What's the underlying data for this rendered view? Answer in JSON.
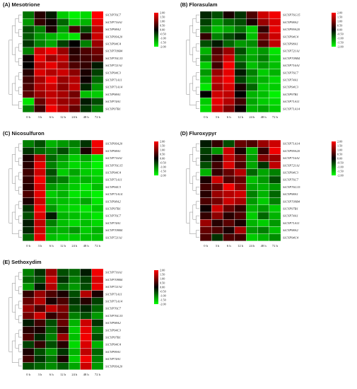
{
  "chart_data": [
    {
      "type": "heatmap",
      "title": "(A) Mesotrione",
      "x": [
        "0 h",
        "3 h",
        "6 h",
        "12 h",
        "24 h",
        "48 h",
        "72 h"
      ],
      "rows": [
        "SiCYP76C7",
        "SiCYP716A1",
        "SiCYP98A2",
        "SiCYP99A20",
        "SiCYP94C4",
        "SiCYP709B4",
        "SiCYP76G15",
        "SiCYP721A1",
        "SiCYP94C3",
        "SiCYP71A11",
        "SiCYP71A14",
        "SiCYP98A1",
        "SiCYP74A1",
        "SiCYP97B1"
      ],
      "values": [
        [
          -0.9,
          0.3,
          -0.2,
          -1.6,
          -1.9,
          -1.7,
          2.0
        ],
        [
          -1.2,
          0.4,
          0.1,
          -0.8,
          -1.6,
          -1.4,
          1.8
        ],
        [
          -0.6,
          -1.0,
          0.2,
          -1.2,
          0.5,
          -0.6,
          1.5
        ],
        [
          -0.7,
          -1.2,
          -1.4,
          -1.6,
          -1.8,
          0.3,
          1.6
        ],
        [
          -0.4,
          -1.0,
          -1.3,
          -0.5,
          0.0,
          -1.0,
          1.2
        ],
        [
          -1.0,
          1.6,
          1.9,
          1.2,
          0.3,
          0.6,
          0.9
        ],
        [
          0.1,
          1.8,
          1.2,
          1.5,
          0.4,
          0.5,
          0.7
        ],
        [
          0.0,
          1.5,
          1.8,
          1.3,
          0.6,
          0.4,
          -0.2
        ],
        [
          0.3,
          1.7,
          1.4,
          1.6,
          1.1,
          0.2,
          -0.5
        ],
        [
          0.5,
          1.3,
          1.9,
          1.2,
          1.4,
          0.1,
          -0.8
        ],
        [
          0.6,
          1.4,
          1.6,
          1.1,
          1.5,
          -0.3,
          -1.2
        ],
        [
          0.7,
          1.2,
          1.5,
          1.3,
          0.9,
          -1.5,
          -1.6
        ],
        [
          -1.8,
          0.8,
          1.6,
          1.2,
          1.1,
          -0.2,
          -0.6
        ],
        [
          -1.0,
          0.5,
          1.9,
          1.4,
          0.8,
          -0.4,
          -1.0
        ]
      ],
      "colorbar": [
        "2.00",
        "1.50",
        "1.00",
        "0.50",
        "0.00",
        "-0.50",
        "-1.00",
        "-1.50",
        "-2.00"
      ],
      "vmin": -2,
      "vmax": 2
    },
    {
      "type": "heatmap",
      "title": "(B) Florasulam",
      "x": [
        "0 h",
        "3 h",
        "6 h",
        "12 h",
        "24 h",
        "48 h",
        "72 h"
      ],
      "rows": [
        "SiCYP76G15",
        "SiCYP98A2",
        "SiCYP99A20",
        "SiCYP94C4",
        "SiCYP98A1",
        "SiCYP721A1",
        "SiCYP709B4",
        "SiCYP716A1",
        "SiCYP76C7",
        "SiCYP74A1",
        "SiCYP94C3",
        "SiCYP97B1",
        "SiCYP71A11",
        "SiCYP71A14"
      ],
      "values": [
        [
          -0.3,
          -0.6,
          0.2,
          -0.4,
          0.6,
          1.6,
          1.9
        ],
        [
          -0.5,
          -1.2,
          -0.8,
          -0.6,
          0.2,
          1.2,
          1.7
        ],
        [
          -0.8,
          -1.5,
          -1.3,
          -0.9,
          -1.6,
          0.4,
          1.8
        ],
        [
          0.4,
          -1.0,
          -0.6,
          -0.3,
          -1.5,
          0.9,
          1.6
        ],
        [
          -0.6,
          -0.2,
          -0.8,
          -1.2,
          -1.1,
          0.6,
          1.5
        ],
        [
          -1.4,
          0.6,
          1.2,
          -0.6,
          -1.4,
          -1.2,
          -1.8
        ],
        [
          -1.0,
          0.8,
          1.6,
          -0.9,
          -1.3,
          -1.0,
          -1.6
        ],
        [
          -1.6,
          0.5,
          1.9,
          -0.6,
          -1.5,
          -1.2,
          -1.5
        ],
        [
          -1.2,
          1.2,
          1.8,
          -0.2,
          -1.0,
          -1.6,
          -1.4
        ],
        [
          -1.5,
          1.5,
          1.9,
          -0.5,
          -1.2,
          -1.4,
          -1.7
        ],
        [
          -1.8,
          1.3,
          1.7,
          0.2,
          -0.8,
          -1.6,
          -1.6
        ],
        [
          0.0,
          1.6,
          1.5,
          0.0,
          -1.4,
          -1.5,
          -1.9
        ],
        [
          -1.6,
          1.8,
          1.4,
          0.5,
          -1.3,
          -1.6,
          -1.7
        ],
        [
          -1.7,
          1.6,
          1.0,
          0.1,
          -1.4,
          -1.3,
          -1.6
        ]
      ],
      "colorbar": [
        "2.00",
        "1.50",
        "1.00",
        "0.50",
        "0.00",
        "-0.50",
        "-1.00",
        "-1.50",
        "-2.00"
      ],
      "vmin": -2,
      "vmax": 2
    },
    {
      "type": "heatmap",
      "title": "(C) Nicosulfuron",
      "x": [
        "0 h",
        "3 h",
        "6 h",
        "12 h",
        "24 h",
        "48 h",
        "72 h"
      ],
      "rows": [
        "SiCYP99A20",
        "SiCYP98A1",
        "SiCYP716A1",
        "SiCYP76G15",
        "SiCYP94C4",
        "SiCYP71A11",
        "SiCYP94C3",
        "SiCYP71A14",
        "SiCYP98A2",
        "SiCYP97B1",
        "SiCYP76C7",
        "SiCYP74A1",
        "SiCYP709B4",
        "SiCYP721A1"
      ],
      "values": [
        [
          -1.0,
          -0.6,
          -1.4,
          -1.2,
          -1.0,
          -0.4,
          1.9
        ],
        [
          -0.4,
          -0.8,
          -1.0,
          -0.6,
          -1.2,
          0.2,
          1.7
        ],
        [
          0.2,
          1.4,
          -0.8,
          -1.2,
          -1.6,
          -1.3,
          -1.8
        ],
        [
          0.3,
          1.8,
          -1.0,
          -1.4,
          -1.7,
          -1.6,
          -1.9
        ],
        [
          0.5,
          1.6,
          -0.6,
          -1.6,
          -1.3,
          -1.6,
          -1.7
        ],
        [
          0.4,
          1.9,
          -0.8,
          -1.0,
          -1.5,
          -1.4,
          -1.6
        ],
        [
          0.3,
          1.7,
          -1.2,
          -1.4,
          -1.6,
          -1.8,
          -1.5
        ],
        [
          0.6,
          1.8,
          -1.6,
          -1.4,
          -1.8,
          -1.7,
          -1.9
        ],
        [
          0.2,
          1.6,
          -1.4,
          -1.5,
          -1.6,
          -1.3,
          -1.8
        ],
        [
          -0.4,
          1.9,
          -1.2,
          -1.6,
          -1.7,
          -1.8,
          -1.6
        ],
        [
          -0.6,
          1.7,
          -0.2,
          -1.4,
          -1.5,
          -1.6,
          -1.8
        ],
        [
          -0.2,
          1.5,
          -1.0,
          -1.5,
          -1.7,
          -1.5,
          -1.7
        ],
        [
          -0.3,
          1.6,
          -1.3,
          -1.4,
          -1.2,
          -1.6,
          -1.4
        ],
        [
          -0.8,
          1.8,
          -1.5,
          -1.6,
          -1.6,
          -1.5,
          -1.5
        ]
      ],
      "colorbar": [
        "2.00",
        "1.50",
        "1.00",
        "0.50",
        "0.00",
        "-0.50",
        "-1.00",
        "-1.50",
        "-2.00"
      ],
      "vmin": -2,
      "vmax": 2
    },
    {
      "type": "heatmap",
      "title": "(D) Fluroxypyr",
      "x": [
        "0 h",
        "3 h",
        "6 h",
        "12 h",
        "24 h",
        "48 h",
        "72 h"
      ],
      "rows": [
        "SiCYP71A14",
        "SiCYP99A20",
        "SiCYP716A1",
        "SiCYP721A1",
        "SiCYP94C3",
        "SiCYP76C7",
        "SiCYP76G15",
        "SiCYP98A1",
        "SiCYP709B4",
        "SiCYP97B1",
        "SiCYP74A1",
        "SiCYP71A11",
        "SiCYP98A2",
        "SiCYP94C4"
      ],
      "values": [
        [
          -0.2,
          0.4,
          -0.6,
          0.8,
          0.6,
          1.2,
          1.6
        ],
        [
          -0.5,
          -1.2,
          1.6,
          0.2,
          -1.4,
          0.4,
          1.9
        ],
        [
          -0.3,
          0.2,
          1.5,
          0.8,
          -1.2,
          1.0,
          1.2
        ],
        [
          -0.6,
          0.5,
          1.7,
          0.6,
          -1.3,
          -0.4,
          1.5
        ],
        [
          -1.4,
          0.4,
          0.8,
          1.4,
          -0.8,
          -1.3,
          -1.0
        ],
        [
          0.2,
          1.6,
          0.6,
          0.8,
          -1.5,
          -1.2,
          -0.6
        ],
        [
          0.5,
          0.8,
          1.9,
          1.1,
          -1.3,
          -1.4,
          -1.2
        ],
        [
          0.3,
          1.2,
          1.4,
          1.6,
          -1.0,
          -1.4,
          -0.8
        ],
        [
          0.6,
          0.9,
          1.6,
          1.3,
          -1.2,
          -1.6,
          -1.0
        ],
        [
          0.1,
          1.6,
          0.8,
          0.4,
          -1.4,
          -1.2,
          -1.6
        ],
        [
          0.4,
          1.1,
          0.3,
          0.6,
          -1.6,
          -0.8,
          -1.4
        ],
        [
          1.2,
          0.3,
          0.7,
          0.2,
          -1.4,
          -1.6,
          -1.2
        ],
        [
          0.8,
          0.6,
          0.2,
          1.3,
          -1.2,
          -1.0,
          -1.5
        ],
        [
          0.6,
          -0.4,
          0.6,
          0.5,
          -1.6,
          -1.4,
          -1.1
        ]
      ],
      "colorbar": [
        "2.00",
        "1.50",
        "1.00",
        "0.50",
        "0.00",
        "-0.50",
        "-1.00",
        "-1.50",
        "-2.00"
      ],
      "vmin": -2,
      "vmax": 2
    },
    {
      "type": "heatmap",
      "title": "(E) Sethoxydim",
      "x": [
        "0 h",
        "3 h",
        "6 h",
        "12 h",
        "24 h",
        "48 h",
        "72 h"
      ],
      "rows": [
        "SiCYP716A1",
        "SiCYP709B4",
        "SiCYP721A1",
        "SiCYP71A11",
        "SiCYP71A14",
        "SiCYP76C7",
        "SiCYP76G15",
        "SiCYP98A2",
        "SiCYP94C3",
        "SiCYP97B1",
        "SiCYP94C4",
        "SiCYP99A1",
        "SiCYP74A1",
        "SiCYP99A20"
      ],
      "values": [
        [
          -1.0,
          -0.4,
          1.2,
          -0.6,
          -0.8,
          -0.2,
          1.9
        ],
        [
          -0.8,
          -0.6,
          1.6,
          -0.4,
          -1.0,
          -0.5,
          1.7
        ],
        [
          -1.2,
          -0.2,
          1.4,
          -0.8,
          -1.2,
          -0.6,
          1.8
        ],
        [
          0.4,
          1.2,
          0.6,
          0.2,
          -0.6,
          1.4,
          0.2
        ],
        [
          0.8,
          1.4,
          0.2,
          0.6,
          -0.4,
          0.3,
          -0.5
        ],
        [
          1.2,
          0.6,
          1.5,
          1.0,
          -0.6,
          -0.3,
          -0.8
        ],
        [
          0.9,
          1.6,
          0.4,
          0.8,
          -1.0,
          -0.6,
          -1.2
        ],
        [
          -0.2,
          0.5,
          -0.6,
          0.8,
          -1.4,
          1.6,
          -0.4
        ],
        [
          0.3,
          0.2,
          -0.8,
          0.4,
          -1.6,
          1.8,
          -0.9
        ],
        [
          0.6,
          -0.3,
          -1.0,
          1.2,
          -1.5,
          1.9,
          -0.6
        ],
        [
          -0.5,
          0.4,
          -0.6,
          0.3,
          -1.7,
          1.7,
          -1.4
        ],
        [
          0.2,
          -0.6,
          -1.2,
          -0.4,
          -1.4,
          1.5,
          -0.8
        ],
        [
          0.5,
          -0.4,
          -0.9,
          0.2,
          -1.6,
          1.9,
          -1.0
        ],
        [
          -0.6,
          -0.8,
          -1.1,
          -0.7,
          -1.3,
          1.6,
          -1.2
        ]
      ],
      "colorbar": [
        "2.00",
        "1.50",
        "1.00",
        "0.50",
        "0.00",
        "-0.50",
        "-1.00",
        "-1.50",
        "-2.00"
      ],
      "vmin": -2,
      "vmax": 2
    }
  ]
}
